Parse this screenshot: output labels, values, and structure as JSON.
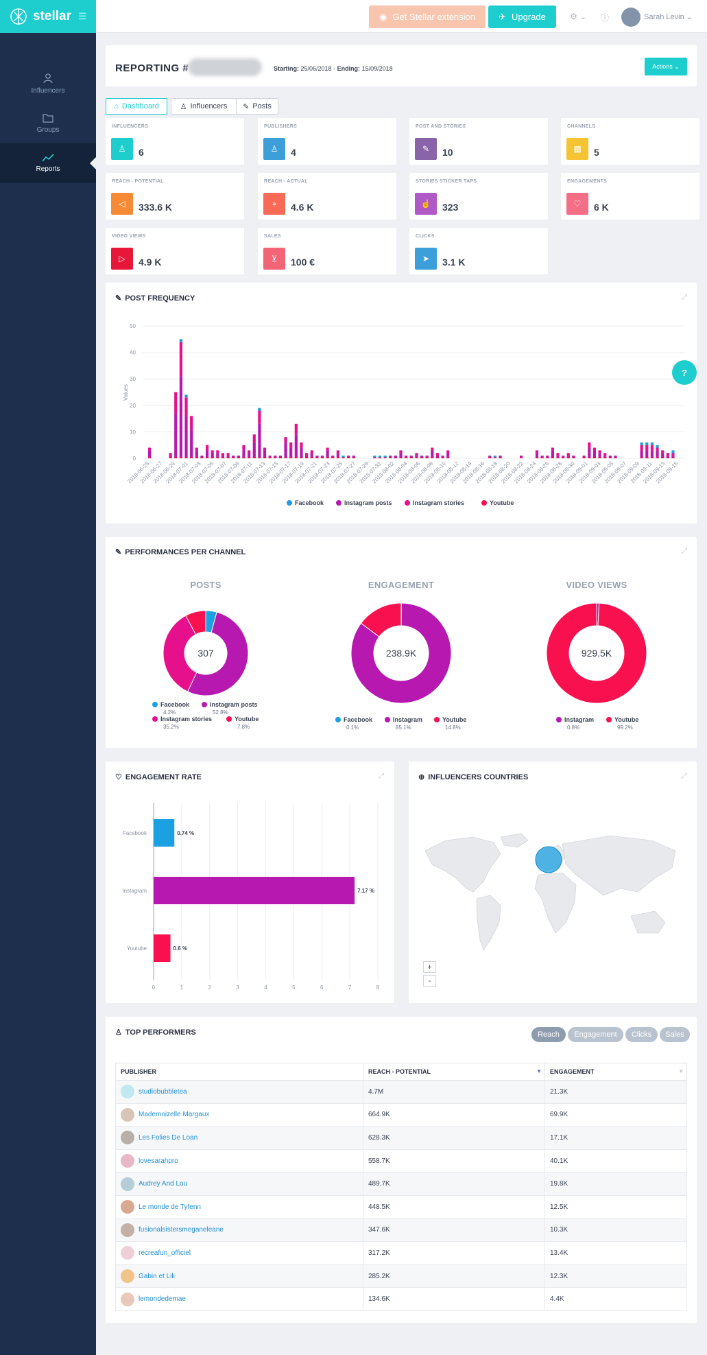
{
  "app": {
    "brand": "stellar",
    "extension_label": "Get Stellar extension",
    "upgrade_label": "Upgrade",
    "user_name": "Sarah Levin"
  },
  "nav": [
    {
      "label": "Influencers",
      "icon": "user-icon"
    },
    {
      "label": "Groups",
      "icon": "folder-icon"
    },
    {
      "label": "Reports",
      "icon": "trend-icon",
      "active": true
    }
  ],
  "header": {
    "title": "REPORTING #",
    "starting_label": "Starting:",
    "starting": "25/06/2018",
    "ending_label": "Ending:",
    "ending": "15/09/2018",
    "sep": " - ",
    "actions_label": "Actions"
  },
  "tabs": [
    {
      "label": "Dashboard",
      "active": true
    },
    {
      "label": "Influencers"
    },
    {
      "label": "Posts"
    }
  ],
  "stats": [
    {
      "label": "INFLUENCERS",
      "value": "6",
      "color": "#1ecdcd",
      "icon": "user-icon"
    },
    {
      "label": "PUBLISHERS",
      "value": "4",
      "color": "#3d9fd9",
      "icon": "user-icon"
    },
    {
      "label": "POST AND STORIES",
      "value": "10",
      "color": "#8a64a8",
      "icon": "edit-icon"
    },
    {
      "label": "CHANNELS",
      "value": "5",
      "color": "#f6c332",
      "icon": "grid-icon"
    },
    {
      "label": "REACH - POTENTIAL",
      "value": "333.6 K",
      "color": "#f78a34",
      "icon": "megaphone-icon"
    },
    {
      "label": "REACH - ACTUAL",
      "value": "4.6 K",
      "color": "#f86a55",
      "icon": "target-icon"
    },
    {
      "label": "STORIES STICKER TAPS",
      "value": "323",
      "color": "#b05ac9",
      "icon": "tap-icon"
    },
    {
      "label": "ENGAGEMENTS",
      "value": "6 K",
      "color": "#f46e85",
      "icon": "heart-icon"
    },
    {
      "label": "VIDEO VIEWS",
      "value": "4.9 K",
      "color": "#e8173a",
      "icon": "play-icon"
    },
    {
      "label": "SALES",
      "value": "100 €",
      "color": "#f26476",
      "icon": "cart-icon"
    },
    {
      "label": "CLICKS",
      "value": "3.1 K",
      "color": "#3d9fd9",
      "icon": "send-icon"
    }
  ],
  "sections": {
    "post_frequency": "POST FREQUENCY",
    "performances": "PERFORMANCES PER CHANNEL",
    "engagement_rate": "ENGAGEMENT RATE",
    "countries": "INFLUENCERS COUNTRIES",
    "top": "TOP PERFORMERS"
  },
  "colors": {
    "facebook": "#1ba0e2",
    "instagram_posts": "#b618b0",
    "instagram_stories": "#e60f8c",
    "youtube": "#f9104f",
    "accent": "#1ecdcd"
  },
  "chart_data": [
    {
      "type": "bar",
      "title": "POST FREQUENCY",
      "ylabel": "Values",
      "ylim": [
        0,
        50
      ],
      "yticks": [
        0,
        10,
        20,
        30,
        40,
        50
      ],
      "x_ticks": [
        "2018-06-25",
        "2018-06-27",
        "2018-06-29",
        "2018-07-01",
        "2018-07-03",
        "2018-07-05",
        "2018-07-07",
        "2018-07-09",
        "2018-07-11",
        "2018-07-13",
        "2018-07-15",
        "2018-07-17",
        "2018-07-19",
        "2018-07-21",
        "2018-07-23",
        "2018-07-25",
        "2018-07-27",
        "2018-07-29",
        "2018-07-31",
        "2018-08-02",
        "2018-08-04",
        "2018-08-06",
        "2018-08-08",
        "2018-08-10",
        "2018-08-12",
        "2018-08-14",
        "2018-08-16",
        "2018-08-18",
        "2018-08-20",
        "2018-08-22",
        "2018-08-24",
        "2018-08-26",
        "2018-08-28",
        "2018-08-30",
        "2018-09-01",
        "2018-09-03",
        "2018-09-05",
        "2018-09-07",
        "2018-09-09",
        "2018-09-11",
        "2018-09-13",
        "2018-09-15"
      ],
      "series": [
        {
          "name": "Facebook"
        },
        {
          "name": "Instagram posts"
        },
        {
          "name": "Instagram stories"
        },
        {
          "name": "Youtube"
        }
      ],
      "totals": [
        4,
        0,
        0,
        0,
        2,
        25,
        45,
        24,
        16,
        4,
        1,
        5,
        3,
        3,
        2,
        2,
        1,
        1,
        5,
        3,
        9,
        19,
        4,
        1,
        1,
        1,
        8,
        6,
        13,
        6,
        2,
        3,
        1,
        1,
        4,
        1,
        3,
        1,
        1,
        1,
        0,
        0,
        0,
        1,
        1,
        1,
        1,
        1,
        3,
        1,
        1,
        2,
        1,
        1,
        4,
        2,
        1,
        3,
        0,
        0,
        0,
        0,
        0,
        0,
        0,
        1,
        1,
        1,
        0,
        0,
        0,
        1,
        0,
        0,
        3,
        1,
        1,
        4,
        2,
        1,
        2,
        1,
        0,
        1,
        6,
        4,
        3,
        2,
        1,
        1,
        0,
        0,
        0,
        0,
        6,
        6,
        6,
        5,
        3,
        2,
        3
      ],
      "facebook": [
        0,
        0,
        0,
        0,
        0,
        0,
        1,
        1,
        0,
        0,
        0,
        0,
        0,
        0,
        0,
        0,
        0,
        0,
        0,
        0,
        0,
        1,
        0,
        0,
        0,
        0,
        0,
        0,
        0,
        0,
        0,
        0,
        0,
        0,
        0,
        0,
        0,
        1,
        0,
        0,
        0,
        0,
        0,
        1,
        1,
        1,
        0,
        0,
        0,
        0,
        0,
        0,
        0,
        0,
        0,
        0,
        0,
        0,
        0,
        0,
        0,
        0,
        0,
        0,
        0,
        0,
        1,
        0,
        0,
        0,
        0,
        0,
        0,
        0,
        0,
        0,
        0,
        0,
        0,
        0,
        0,
        0,
        0,
        0,
        0,
        0,
        0,
        0,
        0,
        0,
        0,
        0,
        0,
        0,
        1,
        1,
        1,
        1,
        0,
        0,
        1
      ]
    },
    {
      "type": "pie",
      "title": "POSTS",
      "center": "307",
      "labels": [
        "Facebook",
        "Instagram posts",
        "Instagram stories",
        "Youtube"
      ],
      "values": [
        4.2,
        52.8,
        35.2,
        7.8
      ],
      "pct_labels": [
        "4.2%",
        "52.8%",
        "35.2%",
        "7.8%"
      ]
    },
    {
      "type": "pie",
      "title": "ENGAGEMENT",
      "center": "238.9K",
      "labels": [
        "Facebook",
        "Instagram",
        "Youtube"
      ],
      "values": [
        0.1,
        85.1,
        14.8
      ],
      "pct_labels": [
        "0.1%",
        "85.1%",
        "14.8%"
      ]
    },
    {
      "type": "pie",
      "title": "VIDEO VIEWS",
      "center": "929.5K",
      "labels": [
        "Instagram",
        "Youtube"
      ],
      "values": [
        0.8,
        99.2
      ],
      "pct_labels": [
        "0.8%",
        "99.2%"
      ]
    },
    {
      "type": "bar",
      "orientation": "horizontal",
      "title": "ENGAGEMENT RATE",
      "categories": [
        "Facebook",
        "Instagram",
        "Youtube"
      ],
      "values": [
        0.74,
        7.17,
        0.6
      ],
      "value_labels": [
        "0.74 %",
        "7.17 %",
        "0.6 %"
      ],
      "xlim": [
        0,
        8
      ],
      "xticks": [
        0,
        1,
        2,
        3,
        4,
        5,
        6,
        7,
        8
      ]
    }
  ],
  "map": {
    "zoom_in": "+",
    "zoom_out": "-"
  },
  "top_performers": {
    "pills": [
      "Reach",
      "Engagement",
      "Clicks",
      "Sales"
    ],
    "columns": [
      "PUBLISHER",
      "REACH - POTENTIAL",
      "ENGAGEMENT"
    ],
    "rows": [
      {
        "publisher": "studiobubbletea",
        "reach": "4.7M",
        "engagement": "21.3K"
      },
      {
        "publisher": "Mademoizelle Margaux",
        "reach": "664.9K",
        "engagement": "69.9K"
      },
      {
        "publisher": "Les Folies De Loan",
        "reach": "628.3K",
        "engagement": "17.1K"
      },
      {
        "publisher": "lovesarahpro",
        "reach": "558.7K",
        "engagement": "40.1K"
      },
      {
        "publisher": "Audrey And Lou",
        "reach": "489.7K",
        "engagement": "19.8K"
      },
      {
        "publisher": "Le monde de Tyfenn",
        "reach": "448.5K",
        "engagement": "12.5K"
      },
      {
        "publisher": "fusionalsistersmeganeleane",
        "reach": "347.6K",
        "engagement": "10.3K"
      },
      {
        "publisher": "recreafun_officiel",
        "reach": "317.2K",
        "engagement": "13.4K"
      },
      {
        "publisher": "Gabin et Lili",
        "reach": "285.2K",
        "engagement": "12.3K"
      },
      {
        "publisher": "lemondedemae",
        "reach": "134.6K",
        "engagement": "4.4K"
      }
    ]
  },
  "help_label": "?"
}
